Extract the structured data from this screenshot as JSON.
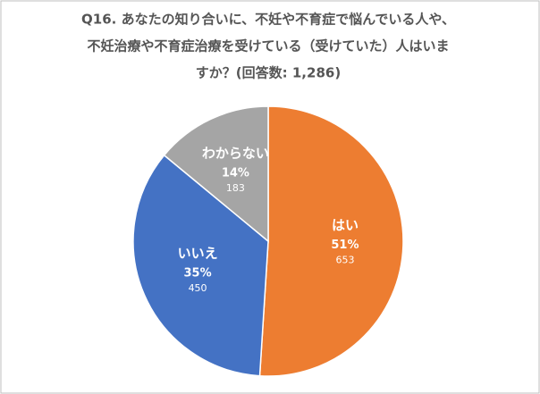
{
  "chart_data": {
    "type": "pie",
    "title": [
      "Q16. あなたの知り合いに、不妊や不育症で悩んでいる人や、",
      "不妊治療や不育症治療を受けている（受けていた）人はいま",
      "すか？(回答数: 1,286)"
    ],
    "categories": [
      "はい",
      "いいえ",
      "わからない"
    ],
    "values": [
      51,
      35,
      14
    ],
    "value_labels": [
      "51%",
      "35%",
      "14%"
    ],
    "counts": [
      653,
      450,
      183
    ],
    "colors": [
      "#ed7d31",
      "#4472c4",
      "#a5a5a5"
    ]
  }
}
